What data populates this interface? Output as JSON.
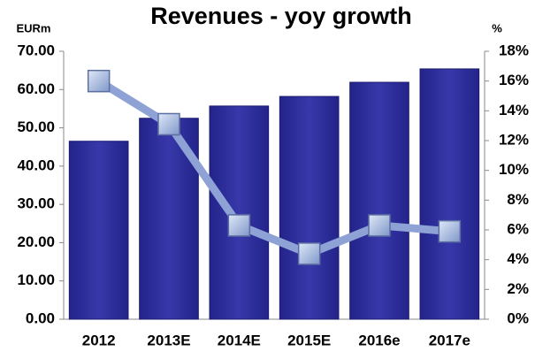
{
  "chart_data": {
    "type": "bar_line",
    "title": "Revenues - yoy growth",
    "y_axis_label": "EURm",
    "y2_axis_label": "%",
    "categories": [
      "2012",
      "2013E",
      "2014E",
      "2015E",
      "2016e",
      "2017e"
    ],
    "series": [
      {
        "type": "bar",
        "color": "#2f2f9c",
        "values": [
          46.5,
          52.5,
          55.7,
          58.2,
          61.9,
          65.4
        ]
      },
      {
        "type": "line",
        "axis": "y2",
        "color": "#8ea2d6",
        "values": [
          16.0,
          13.1,
          6.3,
          4.4,
          6.3,
          5.9
        ]
      }
    ],
    "ylim": [
      0,
      70
    ],
    "yticks": [
      {
        "value": 0,
        "label": "0.00"
      },
      {
        "value": 10,
        "label": "10.00"
      },
      {
        "value": 20,
        "label": "20.00"
      },
      {
        "value": 30,
        "label": "30.00"
      },
      {
        "value": 40,
        "label": "40.00"
      },
      {
        "value": 50,
        "label": "50.00"
      },
      {
        "value": 60,
        "label": "60.00"
      },
      {
        "value": 70,
        "label": "70.00"
      }
    ],
    "y2lim": [
      0,
      18
    ],
    "y2ticks": [
      {
        "value": 0,
        "label": "0%"
      },
      {
        "value": 2,
        "label": "2%"
      },
      {
        "value": 4,
        "label": "4%"
      },
      {
        "value": 6,
        "label": "6%"
      },
      {
        "value": 8,
        "label": "8%"
      },
      {
        "value": 10,
        "label": "10%"
      },
      {
        "value": 12,
        "label": "12%"
      },
      {
        "value": 14,
        "label": "14%"
      },
      {
        "value": 16,
        "label": "16%"
      },
      {
        "value": 18,
        "label": "18%"
      }
    ]
  }
}
